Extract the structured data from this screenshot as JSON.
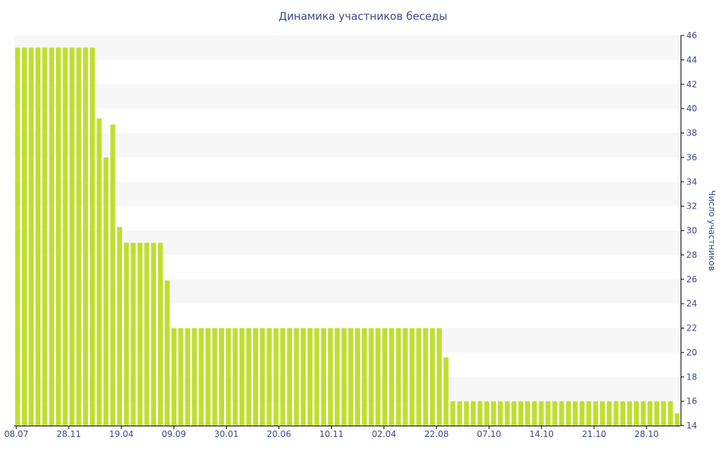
{
  "chart_data": {
    "type": "bar",
    "title": "Динамика участников беседы",
    "xlabel": "",
    "ylabel": "Число участников",
    "y_axis_side": "right",
    "ylim": [
      14,
      46
    ],
    "yticks": [
      14,
      16,
      18,
      20,
      22,
      24,
      26,
      28,
      30,
      32,
      34,
      36,
      38,
      40,
      42,
      44,
      46
    ],
    "x_tick_labels": [
      "08.07",
      "28.11",
      "19.04",
      "09.09",
      "30.01",
      "20.06",
      "10.11",
      "02.04",
      "22.08",
      "07.10",
      "14.10",
      "21.10",
      "28.10"
    ],
    "grid": "horizontal alternating bands",
    "legend": "none",
    "values": [
      45,
      45,
      45,
      45,
      45,
      45,
      45,
      45,
      45,
      45,
      45,
      45,
      39.2,
      36,
      38.7,
      30.3,
      29,
      29,
      29,
      29,
      29,
      29,
      25.9,
      22,
      22,
      22,
      22,
      22,
      22,
      22,
      22,
      22,
      22,
      22,
      22,
      22,
      22,
      22,
      22,
      22,
      22,
      22,
      22,
      22,
      22,
      22,
      22,
      22,
      22,
      22,
      22,
      22,
      22,
      22,
      22,
      22,
      22,
      22,
      22,
      22,
      22,
      22,
      22,
      19.6,
      16,
      16,
      16,
      16,
      16,
      16,
      16,
      16,
      16,
      16,
      16,
      16,
      16,
      16,
      16,
      16,
      16,
      16,
      16,
      16,
      16,
      16,
      16,
      16,
      16,
      16,
      16,
      16,
      16,
      16,
      16,
      16,
      16,
      15
    ],
    "colors": {
      "bar": "#bfdf2f",
      "text": "#3b4a8c",
      "band": "#f7f7f7",
      "axis": "#000000"
    }
  }
}
